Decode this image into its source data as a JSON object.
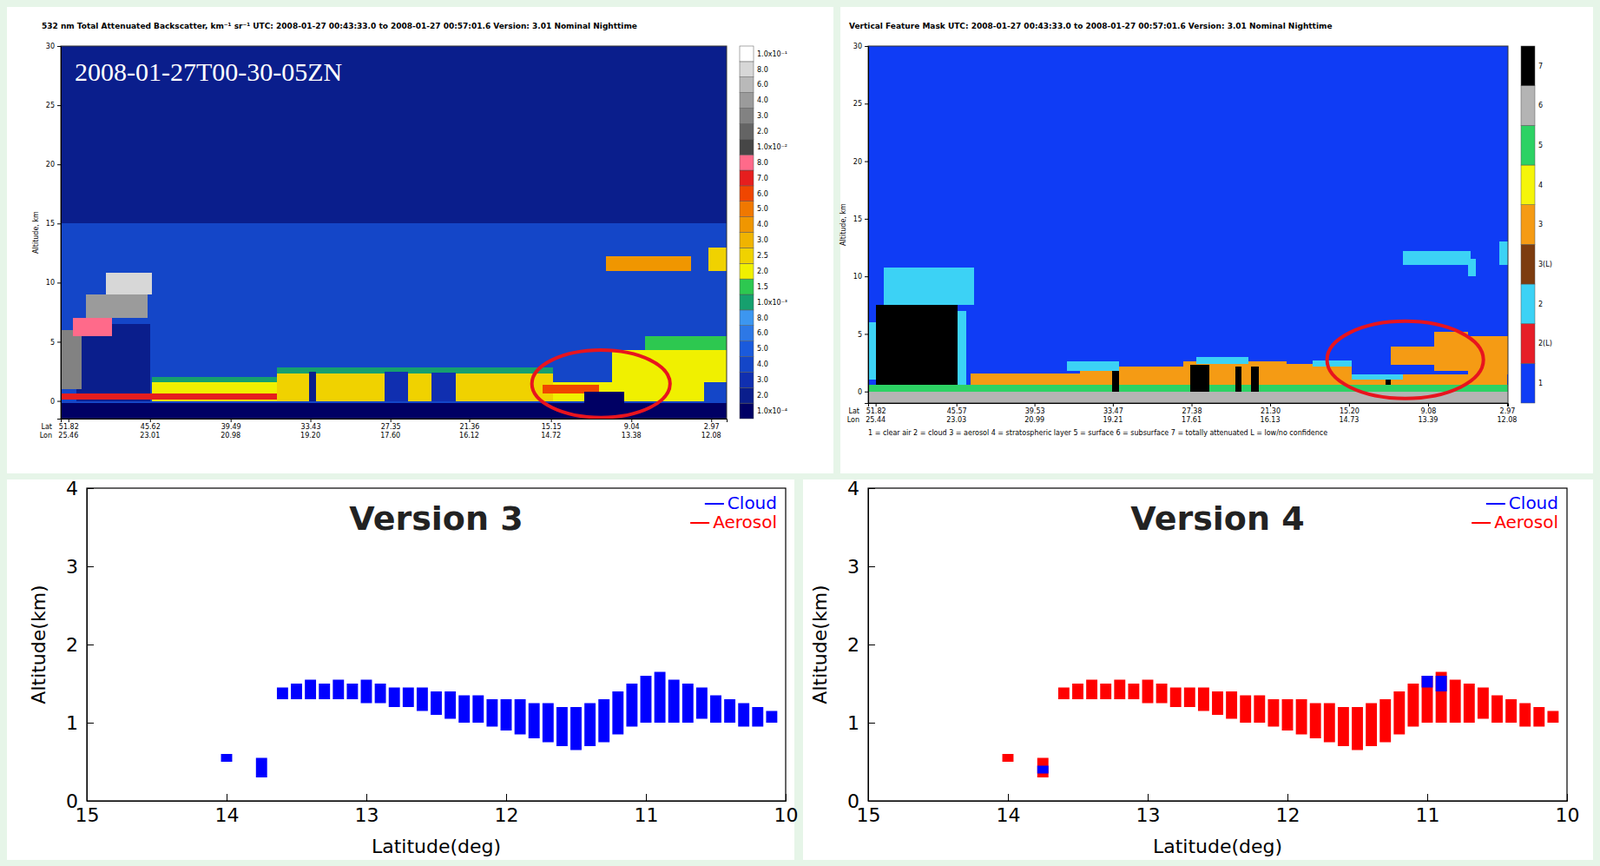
{
  "chart_data": [
    {
      "type": "heatmap",
      "title": "532 nm Total Attenuated Backscatter, km⁻¹ sr⁻¹   UTC: 2008-01-27 00:43:33.0 to 2008-01-27 00:57:01.6   Version: 3.01   Nominal Nighttime",
      "annotation": "2008-01-27T00-30-05ZN",
      "ylabel": "Altitude, km",
      "xlim": [
        52.4,
        1.8
      ],
      "ylim": [
        -1.5,
        30
      ],
      "xticks": [
        51.82,
        45.62,
        39.49,
        33.43,
        27.35,
        21.36,
        15.15,
        9.04,
        2.97
      ],
      "xrow_labels": [
        "Lat",
        "Lon"
      ],
      "lon_labels": [
        "25.46",
        "23.01",
        "20.98",
        "19.20",
        "17.60",
        "16.12",
        "14.72",
        "13.38",
        "12.08"
      ],
      "yticks": [
        0,
        5,
        10,
        15,
        20,
        25,
        30
      ],
      "colorbar": [
        {
          "value": 0.0001,
          "label": "1.0x10⁻⁴",
          "color": "#000064"
        },
        {
          "value": 0.0002,
          "label": "2.0",
          "color": "#0a1e8c"
        },
        {
          "value": 0.0003,
          "label": "3.0",
          "color": "#102fb0"
        },
        {
          "value": 0.0004,
          "label": "4.0",
          "color": "#1446c8"
        },
        {
          "value": 0.0005,
          "label": "5.0",
          "color": "#1a5adc"
        },
        {
          "value": 0.0006,
          "label": "6.0",
          "color": "#2d78e6"
        },
        {
          "value": 0.0008,
          "label": "8.0",
          "color": "#3c96f0"
        },
        {
          "value": 0.001,
          "label": "1.0x10⁻³",
          "color": "#16a06e"
        },
        {
          "value": 0.0015,
          "label": "1.5",
          "color": "#2dc850"
        },
        {
          "value": 0.002,
          "label": "2.0",
          "color": "#f0f000"
        },
        {
          "value": 0.0025,
          "label": "2.5",
          "color": "#f0d200"
        },
        {
          "value": 0.003,
          "label": "3.0",
          "color": "#f0b400"
        },
        {
          "value": 0.004,
          "label": "4.0",
          "color": "#f09600"
        },
        {
          "value": 0.005,
          "label": "5.0",
          "color": "#f07800"
        },
        {
          "value": 0.006,
          "label": "6.0",
          "color": "#f04600"
        },
        {
          "value": 0.007,
          "label": "7.0",
          "color": "#e61e1e"
        },
        {
          "value": 0.008,
          "label": "8.0",
          "color": "#ff6a8a"
        },
        {
          "value": 0.01,
          "label": "1.0x10⁻²",
          "color": "#464646"
        },
        {
          "value": 0.02,
          "label": "2.0",
          "color": "#646464"
        },
        {
          "value": 0.03,
          "label": "3.0",
          "color": "#828282"
        },
        {
          "value": 0.04,
          "label": "4.0",
          "color": "#9b9b9b"
        },
        {
          "value": 0.06,
          "label": "6.0",
          "color": "#b9b9b9"
        },
        {
          "value": 0.08,
          "label": "8.0",
          "color": "#d7d7d7"
        },
        {
          "value": 0.1,
          "label": "1.0x10⁻¹",
          "color": "#ffffff"
        }
      ],
      "cells": [
        [
          52.4,
          1.8,
          15,
          30,
          0.0002
        ],
        [
          52.4,
          1.8,
          -1.5,
          15,
          0.0004
        ],
        [
          52.4,
          1.8,
          -1.5,
          -0.2,
          0.0001
        ],
        [
          51.2,
          45.6,
          0,
          6.5,
          0.0002
        ],
        [
          52.4,
          50.8,
          1,
          6,
          0.03
        ],
        [
          51.5,
          48.5,
          5.5,
          7,
          0.008
        ],
        [
          50.5,
          45.8,
          7,
          9,
          0.04
        ],
        [
          49,
          45.5,
          9,
          10.8,
          0.08
        ],
        [
          45.5,
          3.5,
          0,
          1.6,
          0.002
        ],
        [
          36,
          15,
          0,
          2.3,
          0.0025
        ],
        [
          36,
          15,
          2.3,
          2.8,
          0.001
        ],
        [
          45.5,
          36,
          1.6,
          2.0,
          0.001
        ],
        [
          52.4,
          36,
          0.1,
          0.6,
          0.007
        ],
        [
          33.5,
          33,
          0,
          2.5,
          0.0002
        ],
        [
          27.8,
          26,
          0,
          2.5,
          0.0003
        ],
        [
          24.2,
          22.4,
          0,
          2.4,
          0.0003
        ],
        [
          15.8,
          11.5,
          0.6,
          1.4,
          0.006
        ],
        [
          12.6,
          9.6,
          -1.5,
          0.8,
          0.0001
        ],
        [
          10.5,
          1.8,
          1.6,
          4.3,
          0.002
        ],
        [
          8,
          1.8,
          4.3,
          5.5,
          0.0015
        ],
        [
          11,
          4.5,
          11,
          12.2,
          0.004
        ],
        [
          3.2,
          1.8,
          11,
          13,
          0.0025
        ]
      ],
      "highlight": {
        "x0": 16.6,
        "x1": 6.1,
        "y0": -1.4,
        "y1": 4.3
      }
    },
    {
      "type": "heatmap",
      "title": "Vertical Feature Mask   UTC: 2008-01-27 00:43:33.0 to 2008-01-27 00:57:01.6   Version: 3.01   Nominal Nighttime",
      "ylabel": "Altitude, km",
      "xlim": [
        52.4,
        2.9
      ],
      "ylim": [
        -1,
        30
      ],
      "xticks": [
        51.82,
        45.57,
        39.53,
        33.47,
        27.38,
        {
          "value": 21.3,
          "label": "21.30"
        },
        {
          "value": 15.2,
          "label": "15.20"
        },
        9.08,
        2.97
      ],
      "xrow_labels": [
        "Lat",
        "Lon"
      ],
      "lon_labels": [
        "25.44",
        "23.03",
        "20.99",
        "19.21",
        "17.61",
        "16.13",
        "14.73",
        "13.39",
        "12.08"
      ],
      "yticks": [
        0,
        5,
        10,
        15,
        20,
        25,
        30
      ],
      "footnote": "1 = clear air    2 = cloud    3 = aerosol    4 = stratospheric layer    5 = surface    6 = subsurface    7 = totally attenuated    L = low/no confidence",
      "colorbar": [
        {
          "label": "1",
          "color": "#0f3cf5"
        },
        {
          "label": "2(L)",
          "color": "#e61e28"
        },
        {
          "label": "2",
          "color": "#3cd2f5"
        },
        {
          "label": "3(L)",
          "color": "#7d3c0f"
        },
        {
          "label": "3",
          "color": "#f59b14"
        },
        {
          "label": "4",
          "color": "#f5f50a"
        },
        {
          "label": "5",
          "color": "#2dd264"
        },
        {
          "label": "6",
          "color": "#b4b4b4"
        },
        {
          "label": "7",
          "color": "#000000"
        }
      ],
      "cells": [
        [
          52.4,
          2.9,
          -1,
          30,
          "1"
        ],
        [
          52.4,
          2.9,
          -1,
          0,
          "6"
        ],
        [
          52.4,
          2.9,
          0,
          0.6,
          "5"
        ],
        [
          52.4,
          50.6,
          1,
          6,
          "2"
        ],
        [
          51.8,
          45.5,
          0.6,
          7.5,
          "7"
        ],
        [
          51.2,
          44.2,
          7.5,
          10.8,
          "2"
        ],
        [
          45.5,
          44.8,
          0.6,
          7,
          "2"
        ],
        [
          44.5,
          36,
          0.6,
          1.6,
          "3"
        ],
        [
          36,
          28,
          0.6,
          2.2,
          "3"
        ],
        [
          28,
          20,
          0.6,
          2.6,
          "3"
        ],
        [
          20,
          15,
          0.6,
          2.4,
          "3"
        ],
        [
          37,
          33,
          1.8,
          2.6,
          "2"
        ],
        [
          27,
          23,
          2.4,
          3,
          "2"
        ],
        [
          18,
          15,
          2.2,
          2.7,
          "2"
        ],
        [
          33.5,
          33,
          0,
          1.8,
          "7"
        ],
        [
          27.5,
          26,
          0,
          2.3,
          "7"
        ],
        [
          24,
          23.5,
          0,
          2.2,
          "7"
        ],
        [
          22.8,
          22.2,
          0,
          2.2,
          "7"
        ],
        [
          15,
          3,
          0.6,
          1.5,
          "3"
        ],
        [
          15,
          11,
          1,
          1.5,
          "2"
        ],
        [
          12,
          8.6,
          2.3,
          3.9,
          "3"
        ],
        [
          8.6,
          6,
          1.8,
          5.2,
          "3"
        ],
        [
          6,
          2.9,
          1.5,
          4.8,
          "3"
        ],
        [
          12.4,
          12,
          0.6,
          1,
          "7"
        ],
        [
          11,
          5.8,
          11,
          12.2,
          "2"
        ],
        [
          6,
          5.4,
          10,
          11.5,
          "2"
        ],
        [
          3.6,
          2.9,
          11,
          13,
          "2"
        ]
      ],
      "highlight": {
        "x0": 16.9,
        "x1": 4.8,
        "y0": -0.6,
        "y1": 6.1
      }
    },
    {
      "type": "rangebar",
      "title": "Version 3",
      "xlabel": "Latitude(deg)",
      "ylabel": "Altitude(km)",
      "xlim": [
        15,
        10
      ],
      "ylim": [
        0,
        4
      ],
      "xticks": [
        15,
        14,
        13,
        12,
        11,
        10
      ],
      "yticks": [
        0,
        1,
        2,
        3,
        4
      ],
      "legend": "upper right",
      "series": [
        {
          "name": "Cloud",
          "color": "#0000ff",
          "x": [
            14.0,
            13.75,
            13.6,
            13.5,
            13.4,
            13.3,
            13.2,
            13.1,
            13.0,
            12.9,
            12.8,
            12.7,
            12.6,
            12.5,
            12.4,
            12.3,
            12.2,
            12.1,
            12.0,
            11.9,
            11.8,
            11.7,
            11.6,
            11.5,
            11.4,
            11.3,
            11.2,
            11.1,
            11.0,
            10.9,
            10.8,
            10.7,
            10.6,
            10.5,
            10.4,
            10.3,
            10.2,
            10.1
          ],
          "base": [
            0.5,
            0.3,
            1.3,
            1.3,
            1.3,
            1.3,
            1.3,
            1.3,
            1.25,
            1.25,
            1.2,
            1.2,
            1.15,
            1.1,
            1.05,
            1.0,
            1.0,
            0.95,
            0.9,
            0.85,
            0.8,
            0.75,
            0.7,
            0.65,
            0.7,
            0.75,
            0.85,
            0.95,
            1.0,
            1.0,
            1.0,
            1.0,
            1.05,
            1.0,
            1.0,
            0.95,
            0.95,
            1.0
          ],
          "top": [
            0.6,
            0.55,
            1.45,
            1.5,
            1.55,
            1.5,
            1.55,
            1.5,
            1.55,
            1.5,
            1.45,
            1.45,
            1.45,
            1.4,
            1.4,
            1.35,
            1.35,
            1.3,
            1.3,
            1.3,
            1.25,
            1.25,
            1.2,
            1.2,
            1.25,
            1.3,
            1.4,
            1.5,
            1.6,
            1.65,
            1.55,
            1.5,
            1.45,
            1.35,
            1.3,
            1.25,
            1.2,
            1.15
          ]
        },
        {
          "name": "Aerosol",
          "color": "#ff0000",
          "x": [],
          "base": [],
          "top": []
        }
      ]
    },
    {
      "type": "rangebar",
      "title": "Version 4",
      "xlabel": "Latitude(deg)",
      "ylabel": "Altitude(km)",
      "xlim": [
        15,
        10
      ],
      "ylim": [
        0,
        4
      ],
      "xticks": [
        15,
        14,
        13,
        12,
        11,
        10
      ],
      "yticks": [
        0,
        1,
        2,
        3,
        4
      ],
      "legend": "upper right",
      "series": [
        {
          "name": "Cloud",
          "color": "#0000ff",
          "x": [
            13.75,
            11.0,
            10.9
          ],
          "base": [
            0.35,
            1.45,
            1.4
          ],
          "top": [
            0.45,
            1.6,
            1.6
          ]
        },
        {
          "name": "Aerosol",
          "color": "#ff0000",
          "x": [
            14.0,
            13.75,
            13.6,
            13.5,
            13.4,
            13.3,
            13.2,
            13.1,
            13.0,
            12.9,
            12.8,
            12.7,
            12.6,
            12.5,
            12.4,
            12.3,
            12.2,
            12.1,
            12.0,
            11.9,
            11.8,
            11.7,
            11.6,
            11.5,
            11.4,
            11.3,
            11.2,
            11.1,
            11.0,
            10.9,
            10.8,
            10.7,
            10.6,
            10.5,
            10.4,
            10.3,
            10.2,
            10.1
          ],
          "base": [
            0.5,
            0.3,
            1.3,
            1.3,
            1.3,
            1.3,
            1.3,
            1.3,
            1.25,
            1.25,
            1.2,
            1.2,
            1.15,
            1.1,
            1.05,
            1.0,
            1.0,
            0.95,
            0.9,
            0.85,
            0.8,
            0.75,
            0.7,
            0.65,
            0.7,
            0.75,
            0.85,
            0.95,
            1.0,
            1.0,
            1.0,
            1.0,
            1.05,
            1.0,
            1.0,
            0.95,
            0.95,
            1.0
          ],
          "top": [
            0.6,
            0.55,
            1.45,
            1.5,
            1.55,
            1.5,
            1.55,
            1.5,
            1.55,
            1.5,
            1.45,
            1.45,
            1.45,
            1.4,
            1.4,
            1.35,
            1.35,
            1.3,
            1.3,
            1.3,
            1.25,
            1.25,
            1.2,
            1.2,
            1.25,
            1.3,
            1.4,
            1.5,
            1.6,
            1.65,
            1.55,
            1.5,
            1.45,
            1.35,
            1.3,
            1.25,
            1.2,
            1.15
          ]
        }
      ]
    }
  ]
}
